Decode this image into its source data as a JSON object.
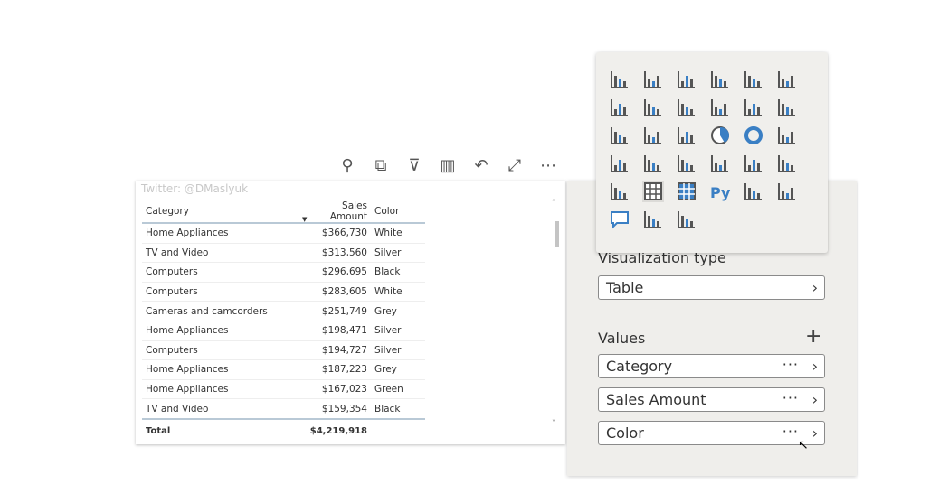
{
  "toolbar": {
    "icons": [
      "pin-icon",
      "copy-icon",
      "filter-icon",
      "format-visual-icon",
      "undo-icon",
      "focus-mode-icon",
      "more-options-icon"
    ]
  },
  "visual": {
    "watermark": "Twitter: @DMaslyuk",
    "columns": [
      "Category",
      "Sales Amount",
      "Color"
    ],
    "sorted_column": "Sales Amount",
    "rows": [
      [
        "Home Appliances",
        "$366,730",
        "White"
      ],
      [
        "TV and Video",
        "$313,560",
        "Silver"
      ],
      [
        "Computers",
        "$296,695",
        "Black"
      ],
      [
        "Computers",
        "$283,605",
        "White"
      ],
      [
        "Cameras and camcorders",
        "$251,749",
        "Grey"
      ],
      [
        "Home Appliances",
        "$198,471",
        "Silver"
      ],
      [
        "Computers",
        "$194,727",
        "Silver"
      ],
      [
        "Home Appliances",
        "$187,223",
        "Grey"
      ],
      [
        "Home Appliances",
        "$167,023",
        "Green"
      ],
      [
        "TV and Video",
        "$159,354",
        "Black"
      ]
    ],
    "total": {
      "label": "Total",
      "amount": "$4,219,918"
    }
  },
  "popup": {
    "icons": [
      "stacked-bar-chart-icon",
      "stacked-column-chart-icon",
      "clustered-bar-chart-icon",
      "clustered-column-chart-icon",
      "100-stacked-bar-chart-icon",
      "100-stacked-column-chart-icon",
      "line-chart-icon",
      "area-chart-icon",
      "stacked-area-chart-icon",
      "line-and-stacked-column-icon",
      "line-and-clustered-column-icon",
      "ribbon-chart-icon",
      "waterfall-chart-icon",
      "funnel-icon",
      "scatter-chart-icon",
      "pie-chart-icon",
      "donut-chart-icon",
      "treemap-icon",
      "map-icon",
      "filled-map-icon",
      "gauge-icon",
      "card-icon",
      "multi-row-card-icon",
      "kpi-icon",
      "slicer-icon",
      "table-icon",
      "matrix-icon",
      "python-visual-icon",
      "key-influencers-icon",
      "decomposition-tree-icon",
      "qa-icon",
      "smart-narrative-icon",
      "paginated-report-icon"
    ],
    "selected": "table-icon"
  },
  "pane": {
    "viz_type_label": "Visualization type",
    "viz_type_value": "Table",
    "values_label": "Values",
    "fields": [
      "Category",
      "Sales Amount",
      "Color"
    ]
  },
  "colors": {
    "accent": "#3a7fc4",
    "icon_gray": "#555555",
    "pane_bg": "#efeeeb"
  }
}
